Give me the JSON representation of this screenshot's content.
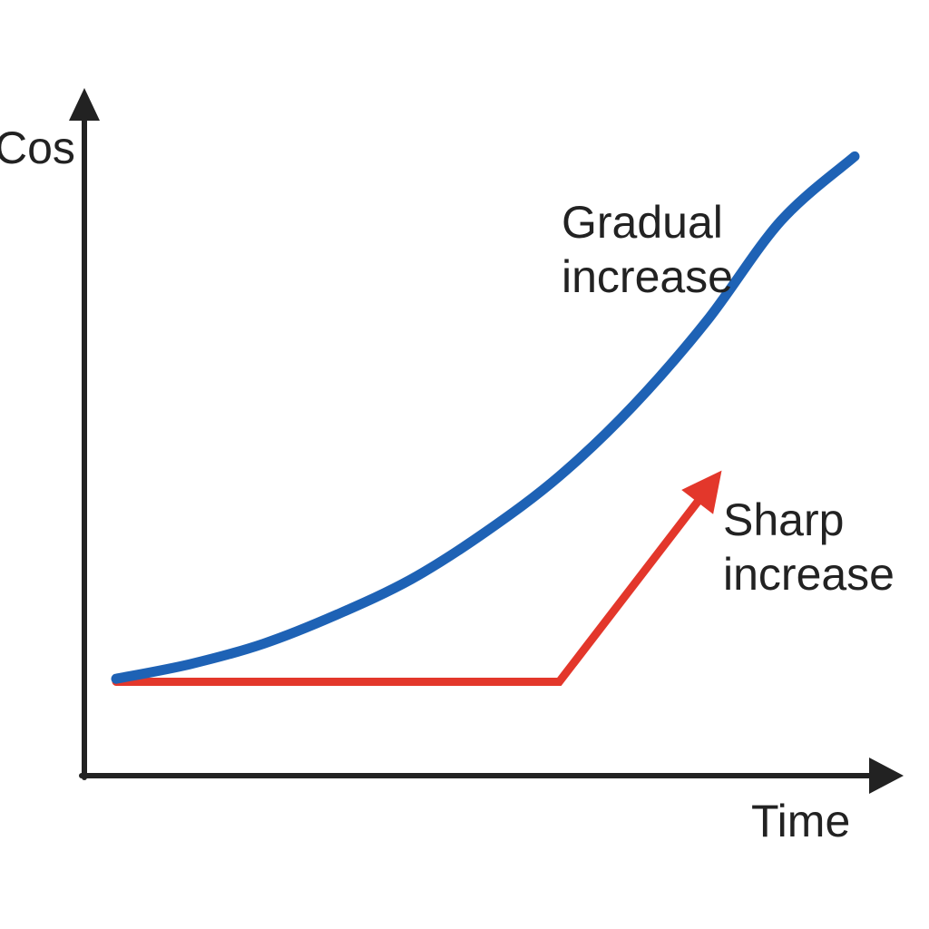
{
  "chart_data": {
    "type": "line",
    "title": "",
    "xlabel": "Time",
    "ylabel": "Cos",
    "xlim": [
      0,
      10
    ],
    "ylim": [
      0,
      10
    ],
    "grid": false,
    "legend": "none",
    "series": [
      {
        "name": "Gradual increase",
        "color": "#1e62b5",
        "x": [
          0,
          1,
          2,
          3,
          4,
          5,
          6,
          7,
          8,
          9,
          10
        ],
        "y": [
          0.8,
          1.05,
          1.4,
          1.9,
          2.5,
          3.3,
          4.25,
          5.45,
          6.9,
          8.6,
          9.7
        ]
      },
      {
        "name": "Sharp increase",
        "color": "#e3372b",
        "x": [
          0,
          6,
          8.2
        ],
        "y": [
          0.75,
          0.75,
          4.35
        ]
      }
    ],
    "annotations": [
      {
        "series": 0,
        "lines": [
          "Gradual",
          "increase"
        ]
      },
      {
        "series": 1,
        "lines": [
          "Sharp",
          "increase"
        ]
      }
    ],
    "colors": {
      "axis": "#222222",
      "text": "#222222",
      "background": "#ffffff"
    }
  }
}
